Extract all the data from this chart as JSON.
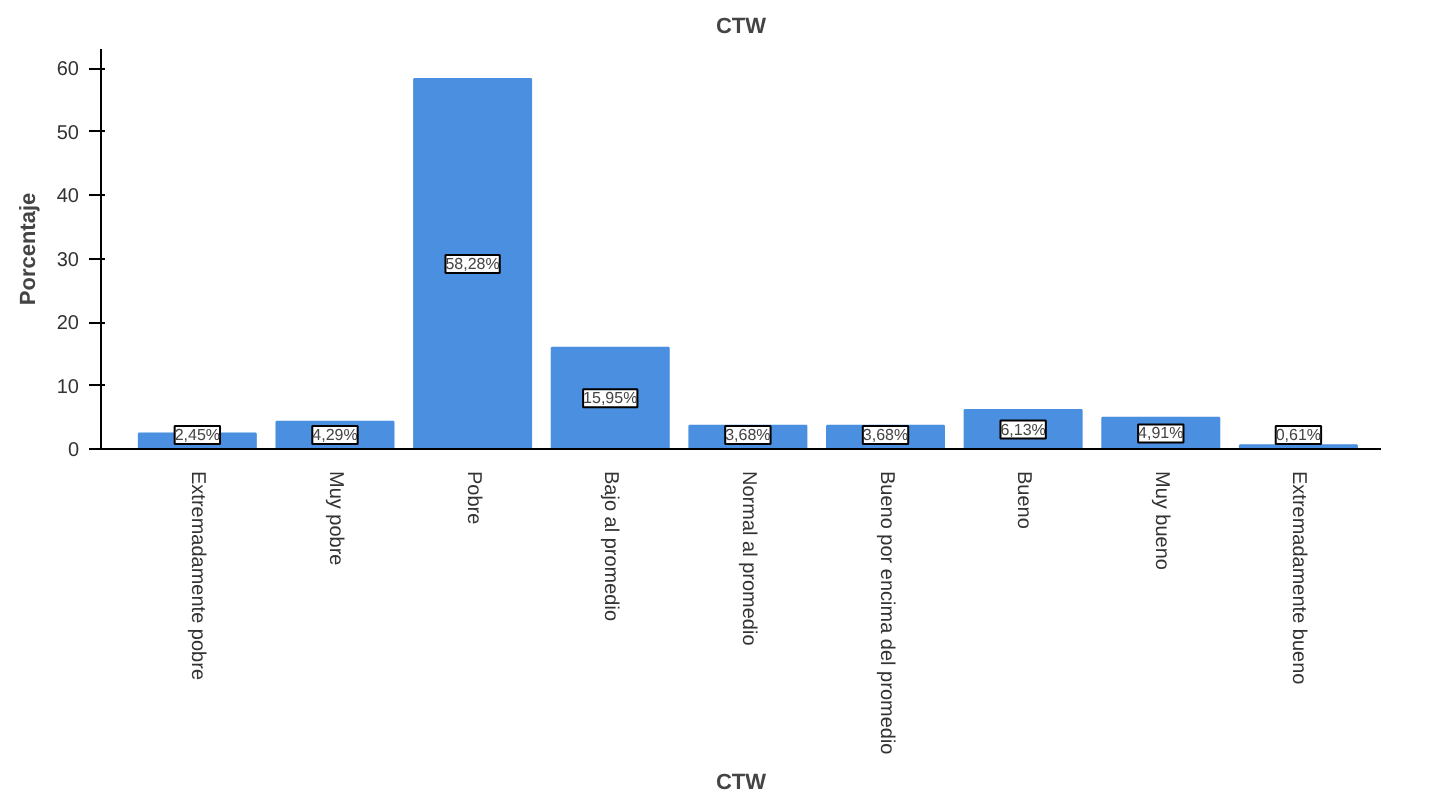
{
  "chart_data": {
    "type": "bar",
    "title": "CTW",
    "xlabel": "CTW",
    "ylabel": "Porcentaje",
    "categories": [
      "Extremadamente pobre",
      "Muy pobre",
      "Pobre",
      "Bajo al promedio",
      "Normal al promedio",
      "Bueno por encima del promedio",
      "Bueno",
      "Muy bueno",
      "Extremadamente bueno"
    ],
    "values": [
      2.45,
      4.29,
      58.28,
      15.95,
      3.68,
      3.68,
      6.13,
      4.91,
      0.61
    ],
    "value_labels": [
      "2,45%",
      "4,29%",
      "58,28%",
      "15,95%",
      "3,68%",
      "3,68%",
      "6,13%",
      "4,91%",
      "0,61%"
    ],
    "color": "#4a8fe0",
    "ylim": [
      0,
      63
    ],
    "yticks": [
      0,
      10,
      20,
      30,
      40,
      50,
      60
    ],
    "grid": false
  }
}
